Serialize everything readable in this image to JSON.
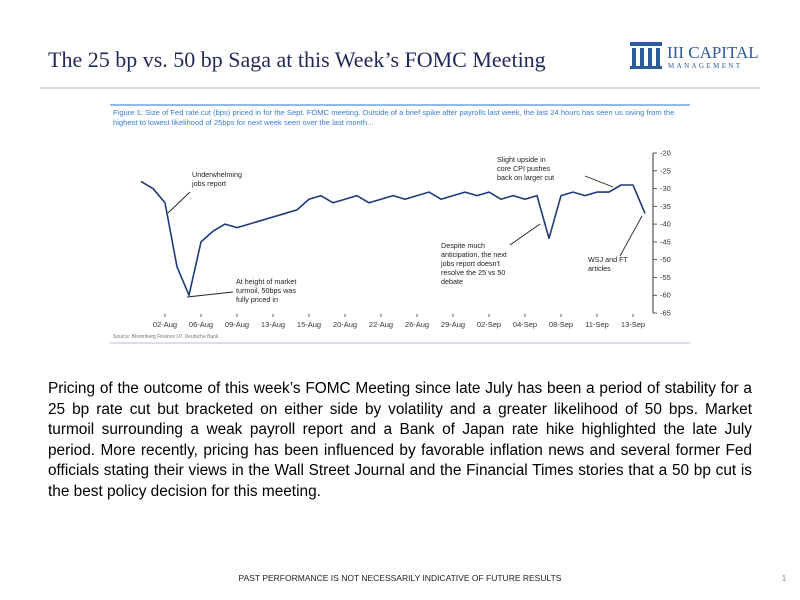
{
  "header": {
    "title": "The 25 bp vs. 50 bp Saga at this Week’s FOMC Meeting",
    "logo_main": "III CAPITAL",
    "logo_sub": "MANAGEMENT"
  },
  "chart_data": {
    "type": "line",
    "caption": "Figure 1: Size of Fed rate cut (bps) priced in for the Sept. FOMC meeting. Outside of a brief spike after payrolls last week, the last 24 hours has seen us swing from the highest to lowest likelihood of 25bps for next week seen over the last month...",
    "source": "Source: Bloomberg Finance LP, Deutsche Bank",
    "categories": [
      null,
      null,
      "02-Aug",
      null,
      null,
      "06-Aug",
      null,
      null,
      "09-Aug",
      null,
      null,
      "13-Aug",
      null,
      null,
      "15-Aug",
      null,
      null,
      "20-Aug",
      null,
      null,
      "22-Aug",
      null,
      null,
      "26-Aug",
      null,
      null,
      "29-Aug",
      null,
      null,
      "02-Sep",
      null,
      null,
      "04-Sep",
      null,
      null,
      "08-Sep",
      null,
      null,
      "11-Sep",
      null,
      null,
      "13-Sep",
      null
    ],
    "series": [
      {
        "color": "#1f3a78",
        "values": [
          -28,
          -30,
          -34,
          -52,
          -60,
          -45,
          -42,
          -40,
          -41,
          -40,
          -39,
          -38,
          -37,
          -36,
          -33,
          -32,
          -34,
          -33,
          -32,
          -34,
          -33,
          -32,
          -33,
          -32,
          -31,
          -33,
          -32,
          -31,
          -32,
          -31,
          -33,
          -32,
          -33,
          -32,
          -44,
          -32,
          -31,
          -32,
          -31,
          -31,
          -29,
          -29,
          -37
        ]
      }
    ],
    "ylim": [
      -65,
      -20
    ],
    "yticks": [
      -20,
      -25,
      -30,
      -35,
      -40,
      -45,
      -50,
      -55,
      -60,
      -65
    ],
    "grid": false,
    "annotations": [
      {
        "lines": [
          "Underwhelming",
          "jobs report"
        ]
      },
      {
        "lines": [
          "At height of market",
          "turmoil, 50bps was",
          "fully priced in"
        ]
      },
      {
        "lines": [
          "Despite much",
          "anticipation, the next",
          "jobs report doesn't",
          "resolve the 25 vs 50",
          "debate"
        ]
      },
      {
        "lines": [
          "Slight upside in",
          "core CPI pushes",
          "back on larger cut"
        ]
      },
      {
        "lines": [
          "WSJ and FT",
          "articles"
        ]
      }
    ]
  },
  "body": "Pricing of the outcome of this week’s FOMC Meeting since late July has been a period of stability for a 25 bp rate cut but bracketed on either side by volatility and a greater likelihood of 50 bps. Market turmoil surrounding a weak payroll report and a Bank of Japan rate hike highlighted the late July period. More recently, pricing has been influenced by favorable inflation news and several former Fed officials stating their views in the Wall Street Journal and the Financial Times stories that a 50 bp cut is the best policy decision for this meeting.",
  "footer": {
    "disclaimer": "PAST PERFORMANCE IS NOT NECESSARILY INDICATIVE OF FUTURE RESULTS",
    "page": "1"
  }
}
